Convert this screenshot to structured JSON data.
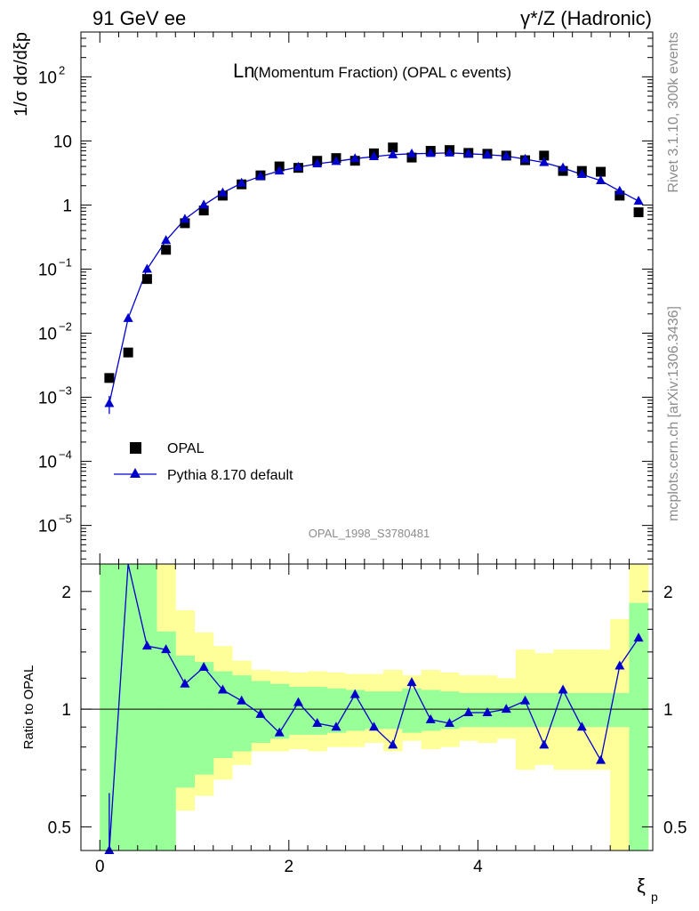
{
  "header": {
    "left": "91 GeV ee",
    "right": "γ*/Z (Hadronic)"
  },
  "side_text": {
    "top": "Rivet 3.1.10,  300k events",
    "bottom": "mcplots.cern.ch [arXiv:1306.3436]"
  },
  "chart_data": [
    {
      "type": "scatter",
      "panel": "main",
      "title_main": "Ln",
      "title_rest": "(Momentum Fraction) (OPAL c events)",
      "watermark": "OPAL_1998_S3780481",
      "ylabel": "1/σ dσ/dξp",
      "yscale": "log",
      "ylim": [
        2.5e-06,
        500
      ],
      "xlim": [
        -0.2,
        5.85
      ],
      "y_ticks": [
        {
          "v": 1e-05,
          "label": "10",
          "exp": "−5"
        },
        {
          "v": 0.0001,
          "label": "10",
          "exp": "−4"
        },
        {
          "v": 0.001,
          "label": "10",
          "exp": "−3"
        },
        {
          "v": 0.01,
          "label": "10",
          "exp": "−2"
        },
        {
          "v": 0.1,
          "label": "10",
          "exp": "−1"
        },
        {
          "v": 1,
          "label": "1",
          "exp": ""
        },
        {
          "v": 10,
          "label": "10",
          "exp": ""
        },
        {
          "v": 100,
          "label": "10",
          "exp": "2"
        }
      ],
      "legend": [
        {
          "name": "OPAL",
          "marker": "square",
          "color": "#000000"
        },
        {
          "name": "Pythia 8.170 default",
          "marker": "triangle",
          "color": "#0000cc"
        }
      ],
      "series": [
        {
          "name": "OPAL",
          "x": [
            0.1,
            0.3,
            0.5,
            0.7,
            0.9,
            1.1,
            1.3,
            1.5,
            1.7,
            1.9,
            2.1,
            2.3,
            2.5,
            2.7,
            2.9,
            3.1,
            3.3,
            3.5,
            3.7,
            3.9,
            4.1,
            4.3,
            4.5,
            4.7,
            4.9,
            5.1,
            5.3,
            5.5,
            5.7
          ],
          "y": [
            0.002,
            0.005,
            0.07,
            0.2,
            0.52,
            0.82,
            1.4,
            2.1,
            2.9,
            4.0,
            3.8,
            4.9,
            5.4,
            4.9,
            6.4,
            7.9,
            5.5,
            7.0,
            7.2,
            6.5,
            6.3,
            5.9,
            5.0,
            5.9,
            3.4,
            3.4,
            3.3,
            1.4,
            0.77
          ]
        },
        {
          "name": "Pythia 8.170 default",
          "x": [
            0.1,
            0.3,
            0.5,
            0.7,
            0.9,
            1.1,
            1.3,
            1.5,
            1.7,
            1.9,
            2.1,
            2.3,
            2.5,
            2.7,
            2.9,
            3.1,
            3.3,
            3.5,
            3.7,
            3.9,
            4.1,
            4.3,
            4.5,
            4.7,
            4.9,
            5.1,
            5.3,
            5.5,
            5.7
          ],
          "y": [
            0.0008,
            0.017,
            0.1,
            0.28,
            0.6,
            1.0,
            1.55,
            2.2,
            2.8,
            3.4,
            3.9,
            4.4,
            4.8,
            5.3,
            5.7,
            6.1,
            6.3,
            6.4,
            6.5,
            6.3,
            6.1,
            5.8,
            5.2,
            4.6,
            3.8,
            3.0,
            2.4,
            1.65,
            1.15
          ],
          "err_low": [
            0.00055,
            null,
            null,
            null,
            null,
            null,
            null,
            null,
            null,
            null,
            null,
            null,
            null,
            null,
            null,
            null,
            null,
            null,
            null,
            null,
            null,
            null,
            null,
            null,
            null,
            null,
            null,
            null,
            null
          ],
          "err_high": [
            0.00105,
            null,
            null,
            null,
            null,
            null,
            null,
            null,
            null,
            null,
            null,
            null,
            null,
            null,
            null,
            null,
            null,
            null,
            null,
            null,
            null,
            null,
            null,
            null,
            null,
            null,
            null,
            null,
            null
          ]
        }
      ]
    },
    {
      "type": "line",
      "panel": "ratio",
      "ylabel": "Ratio to OPAL",
      "xlabel": "ξ",
      "xlabel_sub": "p",
      "yscale": "log",
      "ylim": [
        0.435,
        2.35
      ],
      "xlim": [
        -0.2,
        5.85
      ],
      "x_ticks": [
        0,
        2,
        4
      ],
      "y_ticks": [
        0.5,
        1,
        2
      ],
      "reference_line": 1,
      "bins": [
        0,
        0.2,
        0.4,
        0.6,
        0.8,
        1.0,
        1.2,
        1.4,
        1.6,
        1.8,
        2.0,
        2.2,
        2.4,
        2.6,
        2.8,
        3.0,
        3.2,
        3.4,
        3.6,
        3.8,
        4.0,
        4.2,
        4.4,
        4.6,
        4.8,
        5.0,
        5.2,
        5.4,
        5.6,
        5.8
      ],
      "band_inner": {
        "color": "#99ff99",
        "low": [
          0.1,
          0.1,
          0.1,
          0.42,
          0.63,
          0.68,
          0.75,
          0.78,
          0.82,
          0.84,
          0.86,
          0.86,
          0.87,
          0.88,
          0.89,
          0.89,
          0.87,
          0.88,
          0.89,
          0.9,
          0.9,
          0.9,
          0.9,
          0.9,
          0.9,
          0.9,
          0.9,
          0.9,
          0.1
        ],
        "high": [
          2.5,
          2.5,
          2.5,
          1.58,
          1.37,
          1.32,
          1.25,
          1.22,
          1.18,
          1.16,
          1.14,
          1.14,
          1.13,
          1.12,
          1.11,
          1.11,
          1.13,
          1.12,
          1.11,
          1.1,
          1.1,
          1.1,
          1.1,
          1.1,
          1.1,
          1.1,
          1.1,
          1.1,
          1.87
        ]
      },
      "band_outer": {
        "color": "#ffff99",
        "low": [
          0.1,
          0.1,
          0.1,
          0.38,
          0.55,
          0.6,
          0.66,
          0.72,
          0.78,
          0.78,
          0.79,
          0.78,
          0.8,
          0.8,
          0.82,
          0.78,
          0.83,
          0.79,
          0.8,
          0.83,
          0.82,
          0.84,
          0.7,
          0.72,
          0.7,
          0.7,
          0.7,
          0.1,
          0.1
        ],
        "high": [
          2.5,
          2.5,
          2.5,
          2.5,
          1.79,
          1.57,
          1.45,
          1.33,
          1.26,
          1.25,
          1.24,
          1.25,
          1.24,
          1.23,
          1.23,
          1.26,
          1.22,
          1.26,
          1.24,
          1.22,
          1.22,
          1.2,
          1.42,
          1.39,
          1.42,
          1.42,
          1.42,
          1.7,
          2.5
        ]
      },
      "series": [
        {
          "name": "Pythia 8.170 default",
          "x": [
            0.1,
            0.3,
            0.5,
            0.7,
            0.9,
            1.1,
            1.3,
            1.5,
            1.7,
            1.9,
            2.1,
            2.3,
            2.5,
            2.7,
            2.9,
            3.1,
            3.3,
            3.5,
            3.7,
            3.9,
            4.1,
            4.3,
            4.5,
            4.7,
            4.9,
            5.1,
            5.3,
            5.5,
            5.7
          ],
          "y": [
            0.4,
            2.6,
            1.45,
            1.42,
            1.16,
            1.28,
            1.12,
            1.05,
            0.97,
            0.87,
            1.04,
            0.92,
            0.9,
            1.09,
            0.9,
            0.81,
            1.17,
            0.94,
            0.92,
            0.98,
            0.98,
            1.0,
            1.05,
            0.81,
            1.12,
            0.9,
            0.74,
            1.29,
            1.52
          ],
          "err_low": [
            0.34,
            null,
            null,
            null,
            null,
            null,
            null,
            null,
            null,
            null,
            null,
            null,
            null,
            null,
            null,
            null,
            null,
            null,
            null,
            null,
            null,
            null,
            null,
            null,
            null,
            null,
            null,
            null,
            null
          ],
          "err_high": [
            0.61,
            null,
            null,
            null,
            null,
            null,
            null,
            null,
            null,
            null,
            null,
            null,
            null,
            null,
            null,
            null,
            null,
            null,
            null,
            null,
            null,
            null,
            null,
            null,
            null,
            null,
            null,
            null,
            null
          ]
        }
      ]
    }
  ]
}
